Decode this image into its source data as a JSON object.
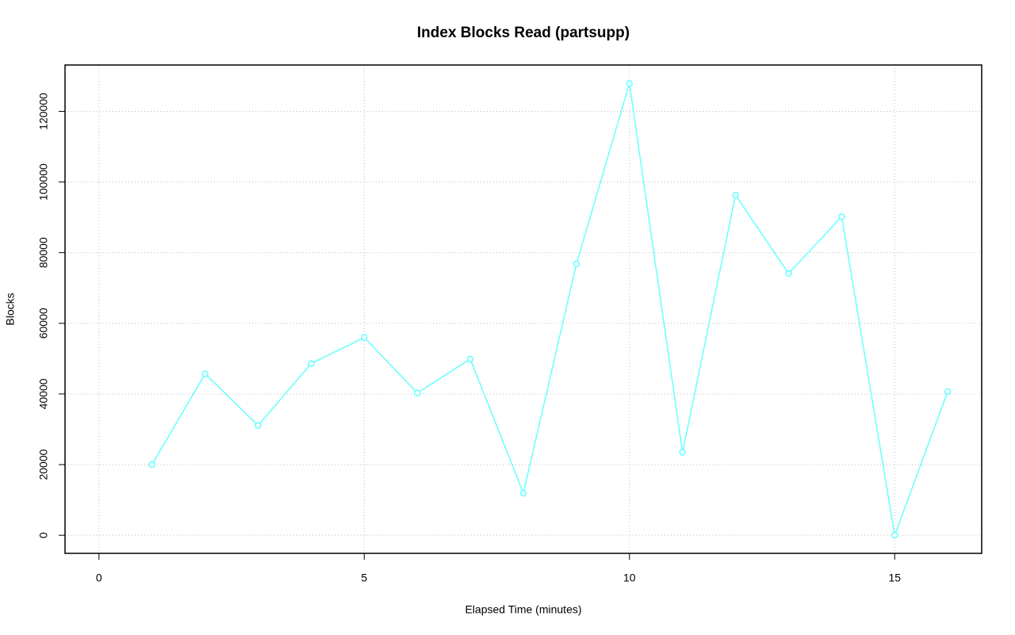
{
  "chart_data": {
    "type": "line",
    "title": "Index Blocks Read (partsupp)",
    "xlabel": "Elapsed Time (minutes)",
    "ylabel": "Blocks",
    "x": [
      1,
      2,
      3,
      4,
      5,
      6,
      7,
      8,
      9,
      10,
      11,
      12,
      13,
      14,
      15,
      16
    ],
    "values": [
      20000,
      45700,
      31100,
      48600,
      56000,
      40300,
      49900,
      11900,
      76800,
      127900,
      23500,
      96300,
      74100,
      90200,
      0,
      40700
    ],
    "color": "#66ffff",
    "xlim": [
      -0.64,
      16.64
    ],
    "xticks": [
      0,
      5,
      10,
      15
    ],
    "ylim": [
      -5120,
      133120
    ],
    "yticks": [
      0,
      20000,
      40000,
      60000,
      80000,
      100000,
      120000
    ],
    "grid": true
  }
}
